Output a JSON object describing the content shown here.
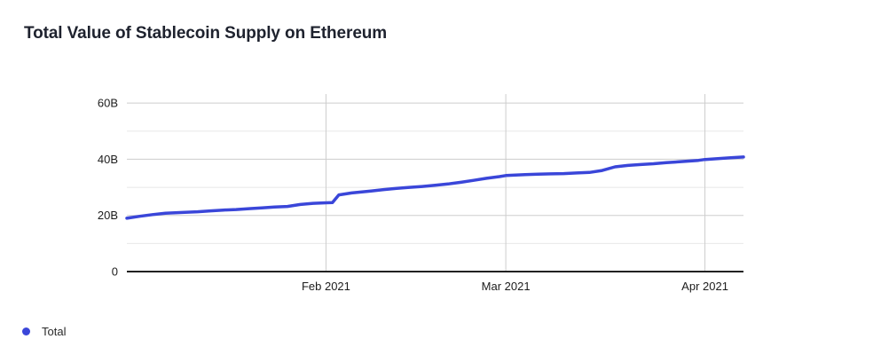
{
  "header": {
    "title": "Total Value of Stablecoin Supply on Ethereum"
  },
  "legend": {
    "items": [
      {
        "label": "Total",
        "color": "#3a46d9"
      }
    ]
  },
  "colors": {
    "background": "#ffffff",
    "title_text": "#1e222e",
    "tick_text": "#1c1c1c",
    "series_blue": "#3a46d9",
    "grid_major": "#cdcdcd",
    "grid_minor": "#e8e8e8",
    "axis": "#212121"
  },
  "chart_data": {
    "type": "line",
    "title": "Total Value of Stablecoin Supply on Ethereum",
    "xlabel": "",
    "ylabel": "",
    "unit_suffix": "B",
    "grid": true,
    "legend_position": "bottom-left",
    "xlim": [
      "2021-01-01",
      "2021-04-07"
    ],
    "ylim": [
      0,
      63.2
    ],
    "x": [
      "2021-01-01",
      "2021-01-03",
      "2021-01-05",
      "2021-01-07",
      "2021-01-10",
      "2021-01-12",
      "2021-01-14",
      "2021-01-16",
      "2021-01-18",
      "2021-01-20",
      "2021-01-22",
      "2021-01-24",
      "2021-01-26",
      "2021-01-28",
      "2021-01-30",
      "2021-02-01",
      "2021-02-02",
      "2021-02-03",
      "2021-02-05",
      "2021-02-08",
      "2021-02-10",
      "2021-02-12",
      "2021-02-14",
      "2021-02-16",
      "2021-02-18",
      "2021-02-20",
      "2021-02-22",
      "2021-02-24",
      "2021-02-26",
      "2021-02-28",
      "2021-03-01",
      "2021-03-04",
      "2021-03-06",
      "2021-03-08",
      "2021-03-10",
      "2021-03-12",
      "2021-03-14",
      "2021-03-16",
      "2021-03-18",
      "2021-03-20",
      "2021-03-22",
      "2021-03-24",
      "2021-03-26",
      "2021-03-28",
      "2021-03-31",
      "2021-04-01",
      "2021-04-03",
      "2021-04-05",
      "2021-04-07"
    ],
    "series": [
      {
        "name": "Total",
        "color": "#3a46d9",
        "values": [
          19.0,
          19.7,
          20.3,
          20.8,
          21.1,
          21.3,
          21.6,
          21.9,
          22.1,
          22.4,
          22.7,
          23.0,
          23.2,
          23.9,
          24.3,
          24.5,
          24.6,
          27.3,
          28.0,
          28.7,
          29.2,
          29.6,
          30.0,
          30.3,
          30.7,
          31.2,
          31.8,
          32.5,
          33.2,
          33.8,
          34.2,
          34.5,
          34.7,
          34.8,
          34.9,
          35.1,
          35.3,
          36.0,
          37.3,
          37.8,
          38.1,
          38.4,
          38.8,
          39.1,
          39.6,
          39.9,
          40.2,
          40.5,
          40.8
        ]
      }
    ],
    "x_ticks": [
      {
        "date": "2021-02-01",
        "label": "Feb 2021"
      },
      {
        "date": "2021-03-01",
        "label": "Mar 2021"
      },
      {
        "date": "2021-04-01",
        "label": "Apr 2021"
      }
    ],
    "y_ticks": [
      {
        "value": 0,
        "label": "0"
      },
      {
        "value": 20,
        "label": "20B"
      },
      {
        "value": 40,
        "label": "40B"
      },
      {
        "value": 60,
        "label": "60B"
      }
    ],
    "y_minor_ticks": [
      10,
      30,
      50
    ]
  }
}
